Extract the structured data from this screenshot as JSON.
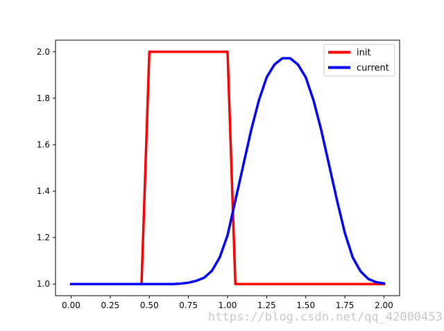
{
  "chart_data": {
    "type": "line",
    "title": "",
    "xlabel": "",
    "ylabel": "",
    "xlim": [
      -0.1,
      2.1
    ],
    "ylim": [
      0.95,
      2.05
    ],
    "xticks": [
      "0.00",
      "0.25",
      "0.50",
      "0.75",
      "1.00",
      "1.25",
      "1.50",
      "1.75",
      "2.00"
    ],
    "yticks": [
      "1.0",
      "1.2",
      "1.4",
      "1.6",
      "1.8",
      "2.0"
    ],
    "grid": false,
    "legend_position": "top-right",
    "series": [
      {
        "name": "init",
        "color": "#ff0000",
        "x": [
          0.0,
          0.05,
          0.1,
          0.15,
          0.2,
          0.25,
          0.3,
          0.35,
          0.4,
          0.45,
          0.5,
          0.55,
          0.6,
          0.65,
          0.7,
          0.75,
          0.8,
          0.85,
          0.9,
          0.95,
          1.0,
          1.05,
          1.1,
          1.15,
          1.2,
          1.25,
          1.3,
          1.35,
          1.4,
          1.45,
          1.5,
          1.55,
          1.6,
          1.65,
          1.7,
          1.75,
          1.8,
          1.85,
          1.9,
          1.95,
          2.0
        ],
        "y": [
          1,
          1,
          1,
          1,
          1,
          1,
          1,
          1,
          1,
          1,
          2,
          2,
          2,
          2,
          2,
          2,
          2,
          2,
          2,
          2,
          2,
          1,
          1,
          1,
          1,
          1,
          1,
          1,
          1,
          1,
          1,
          1,
          1,
          1,
          1,
          1,
          1,
          1,
          1,
          1,
          1
        ]
      },
      {
        "name": "current",
        "color": "#0000ff",
        "x": [
          0.0,
          0.05,
          0.1,
          0.15,
          0.2,
          0.25,
          0.3,
          0.35,
          0.4,
          0.45,
          0.5,
          0.55,
          0.6,
          0.65,
          0.7,
          0.75,
          0.8,
          0.85,
          0.9,
          0.95,
          1.0,
          1.05,
          1.1,
          1.15,
          1.2,
          1.25,
          1.3,
          1.35,
          1.4,
          1.45,
          1.5,
          1.55,
          1.6,
          1.65,
          1.7,
          1.75,
          1.8,
          1.85,
          1.9,
          1.95,
          2.0
        ],
        "y": [
          1.0,
          1.0,
          1.0,
          1.0,
          1.0,
          1.0,
          1.0,
          1.0,
          1.0,
          1.0,
          1.0,
          1.0,
          1.0,
          1.0,
          1.002,
          1.006,
          1.014,
          1.027,
          1.057,
          1.115,
          1.21,
          1.36,
          1.51,
          1.66,
          1.79,
          1.89,
          1.945,
          1.972,
          1.972,
          1.945,
          1.89,
          1.79,
          1.66,
          1.51,
          1.36,
          1.22,
          1.115,
          1.055,
          1.022,
          1.008,
          1.003
        ]
      }
    ]
  },
  "watermark": "https://blog.csdn.net/qq_42000453"
}
